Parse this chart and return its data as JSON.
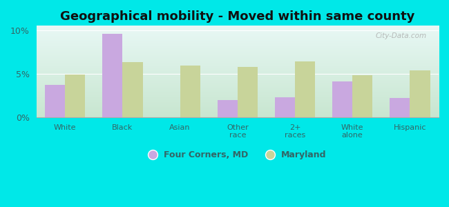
{
  "title": "Geographical mobility - Moved within same county",
  "categories": [
    "White",
    "Black",
    "Asian",
    "Other\nrace",
    "2+\nraces",
    "White\nalone",
    "Hispanic"
  ],
  "four_corners": [
    3.7,
    9.6,
    0.0,
    2.0,
    2.3,
    4.1,
    2.2
  ],
  "maryland": [
    4.9,
    6.3,
    5.9,
    5.8,
    6.4,
    4.8,
    5.4
  ],
  "four_corners_color": "#c9a8e0",
  "maryland_color": "#c8d49a",
  "background_color_fig": "#00e8e8",
  "ylim": [
    0,
    10.5
  ],
  "yticks": [
    0,
    5,
    10
  ],
  "ytick_labels": [
    "0%",
    "5%",
    "10%"
  ],
  "bar_width": 0.35,
  "legend_label_fc": "Four Corners, MD",
  "legend_label_md": "Maryland",
  "title_fontsize": 13,
  "tick_label_color": "#336666",
  "watermark": "City-Data.com",
  "grad_bottom_color": "#d4edda",
  "grad_top_color": "#e8f5f0"
}
